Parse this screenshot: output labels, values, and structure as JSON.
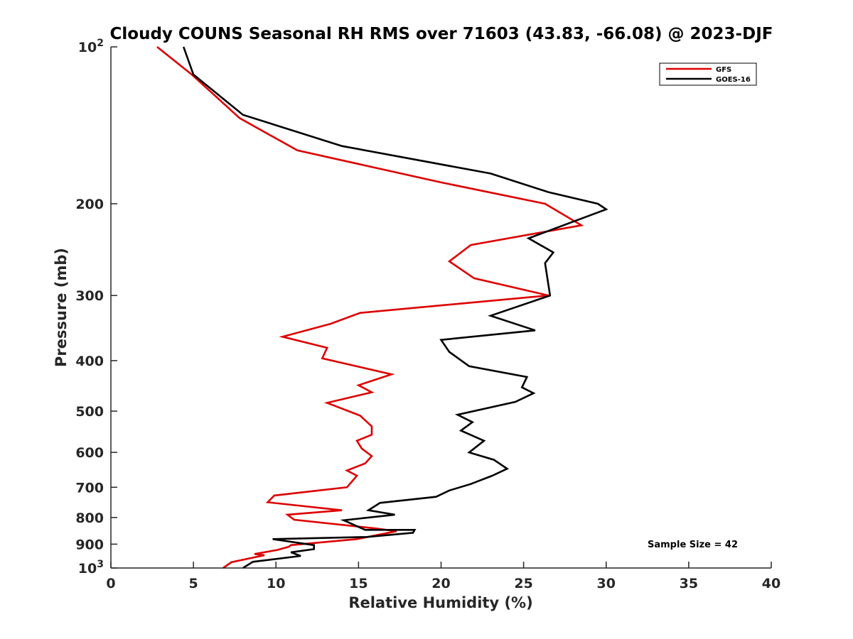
{
  "chart_data": {
    "type": "line",
    "title": "Cloudy COUNS Seasonal RH RMS over 71603 (43.83, -66.08) @ 2023-DJF",
    "xlabel": "Relative Humidity (%)",
    "ylabel": "Pressure (mb)",
    "xlim": [
      0,
      40
    ],
    "ylim": [
      100,
      1000
    ],
    "yscale": "log",
    "y_reversed": true,
    "x_ticks": [
      "0",
      "5",
      "10",
      "15",
      "20",
      "25",
      "30",
      "35",
      "40"
    ],
    "y_ticks": [
      {
        "value": 100,
        "base": "10",
        "exp": "2"
      },
      {
        "value": 200,
        "label": "200"
      },
      {
        "value": 300,
        "label": "300"
      },
      {
        "value": 400,
        "label": "400"
      },
      {
        "value": 500,
        "label": "500"
      },
      {
        "value": 600,
        "label": "600"
      },
      {
        "value": 700,
        "label": "700"
      },
      {
        "value": 800,
        "label": "800"
      },
      {
        "value": 900,
        "label": "900"
      },
      {
        "value": 1000,
        "base": "10",
        "exp": "3"
      }
    ],
    "legend_position": "top-right",
    "annotation": "Sample Size = 42",
    "series": [
      {
        "name": "GFS",
        "color": "#dd0000",
        "x": [
          2.8,
          4.9,
          7.8,
          11.3,
          20.0,
          26.3,
          28.5,
          21.8,
          20.5,
          22.0,
          26.5,
          15.1,
          13.3,
          10.4,
          13.1,
          12.8,
          17.0,
          15.0,
          15.8,
          13.1,
          15.1,
          15.8,
          15.8,
          14.9,
          15.2,
          15.8,
          15.4,
          14.3,
          14.9,
          14.3,
          9.9,
          9.5,
          14.0,
          10.7,
          11.1,
          16.1,
          17.3,
          14.9,
          10.9,
          10.8,
          10.1,
          8.7,
          9.3,
          7.3,
          6.8
        ],
        "y": [
          100,
          113,
          137,
          158,
          182,
          200,
          220,
          240,
          258,
          278,
          300,
          324,
          340,
          360,
          378,
          396,
          425,
          446,
          460,
          482,
          510,
          535,
          555,
          570,
          590,
          610,
          630,
          650,
          665,
          700,
          726,
          748,
          775,
          790,
          808,
          840,
          850,
          880,
          904,
          910,
          923,
          940,
          945,
          975,
          1000
        ]
      },
      {
        "name": "GOES-16",
        "color": "#000000",
        "x": [
          4.4,
          5.0,
          8.0,
          14.0,
          23.0,
          26.5,
          29.5,
          30.0,
          25.3,
          26.8,
          26.3,
          26.6,
          23.0,
          25.7,
          20.0,
          20.5,
          21.7,
          25.2,
          24.9,
          25.6,
          24.5,
          21.0,
          21.9,
          21.2,
          22.6,
          21.7,
          23.2,
          24.0,
          23.1,
          21.8,
          20.5,
          19.7,
          16.3,
          15.6,
          17.2,
          14.1,
          15.4,
          18.4,
          18.3,
          15.5,
          9.8,
          12.3,
          12.3,
          10.9,
          11.5,
          8.6,
          8.0
        ],
        "y": [
          100,
          113,
          135,
          155,
          175,
          190,
          200,
          205,
          233,
          248,
          260,
          300,
          328,
          350,
          365,
          385,
          410,
          430,
          450,
          462,
          480,
          508,
          525,
          545,
          570,
          600,
          620,
          645,
          665,
          690,
          710,
          730,
          750,
          775,
          790,
          810,
          845,
          845,
          856,
          872,
          880,
          904,
          920,
          933,
          948,
          973,
          1000
        ]
      }
    ]
  }
}
